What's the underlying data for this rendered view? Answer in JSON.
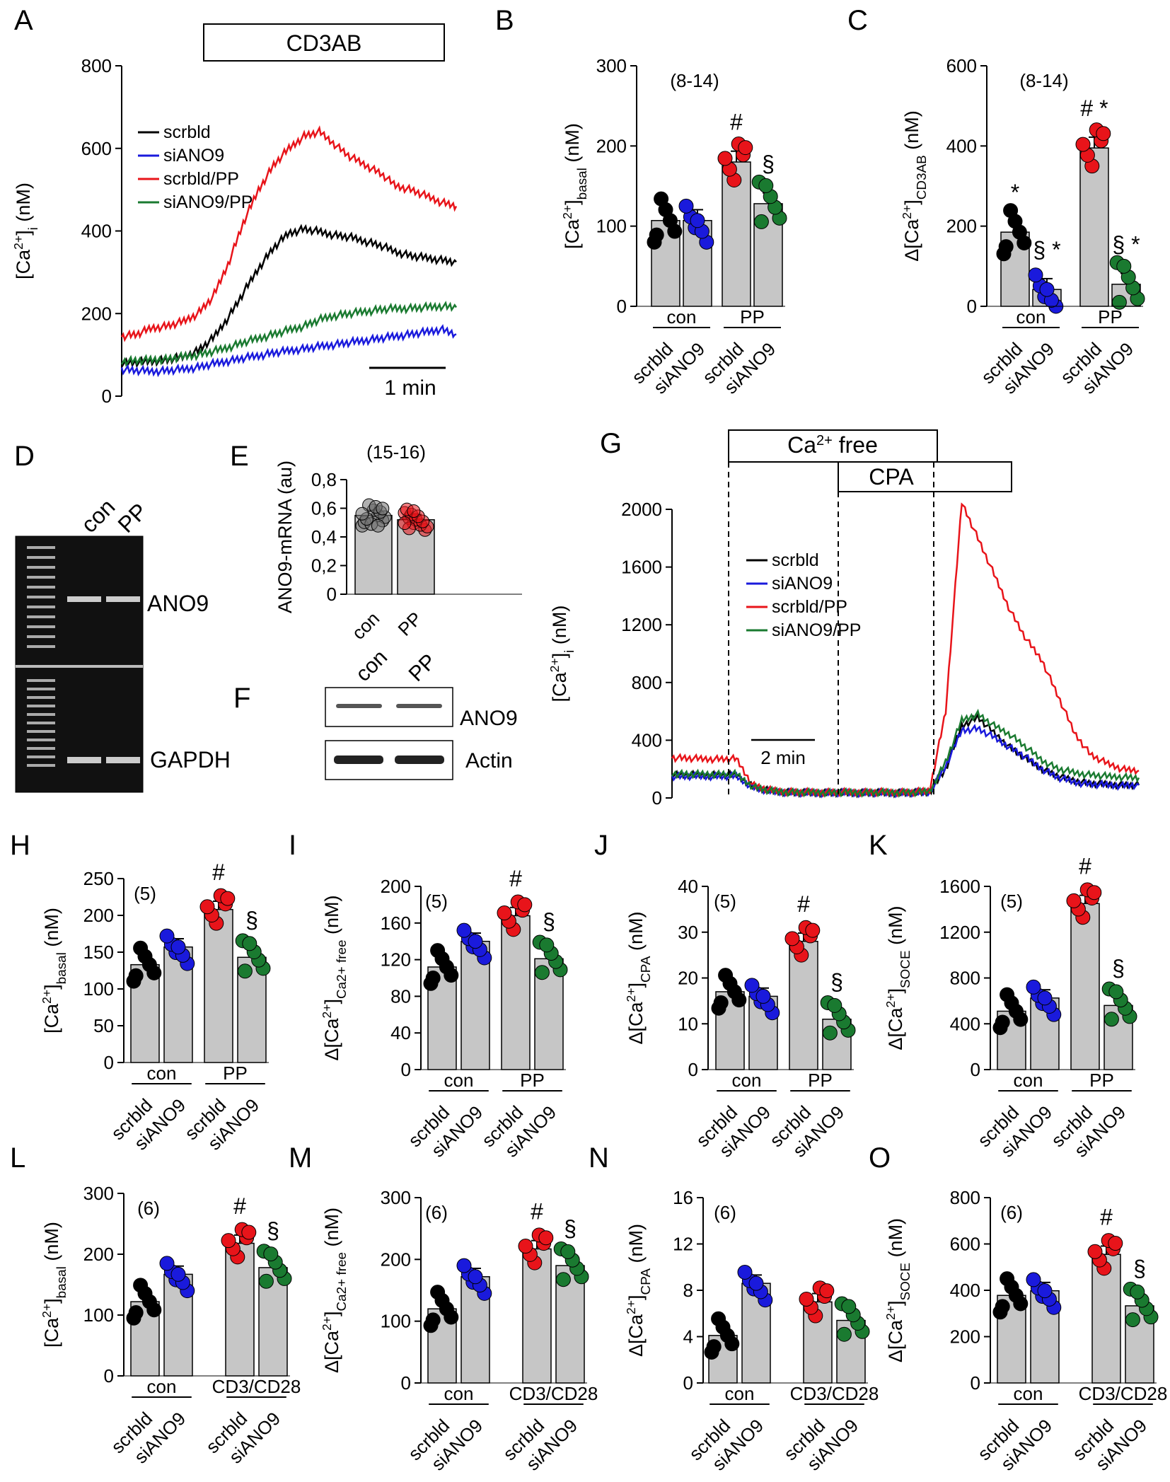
{
  "colors": {
    "scrbld": "#000000",
    "siANO9": "#1a1adc",
    "scrbld_pp": "#e8141a",
    "siANO9_pp": "#1a7a30",
    "bar": "#c6c6c6"
  },
  "chart_data": [
    {
      "id": "A",
      "type": "line",
      "panel_label": "A",
      "stimulus": "CD3AB",
      "ylabel": "[Ca2+]i (nM)",
      "ylim": [
        0,
        800
      ],
      "yticks": [
        0,
        200,
        400,
        600,
        800
      ],
      "scale_bar": "1 min",
      "legend": [
        "scrbld",
        "siANO9",
        "scrbld/PP",
        "siANO9/PP"
      ],
      "series": [
        {
          "name": "scrbld",
          "values": [
            80,
            82,
            85,
            88,
            95,
            110,
            140,
            190,
            250,
            310,
            360,
            395,
            405,
            398,
            390,
            385,
            375,
            365,
            350,
            340,
            335,
            330,
            325
          ]
        },
        {
          "name": "siANO9",
          "values": [
            65,
            62,
            60,
            62,
            65,
            70,
            78,
            85,
            92,
            98,
            105,
            110,
            115,
            120,
            125,
            130,
            135,
            140,
            145,
            150,
            155,
            162,
            150
          ]
        },
        {
          "name": "scrbld/PP",
          "values": [
            145,
            150,
            165,
            170,
            180,
            200,
            240,
            320,
            420,
            500,
            560,
            600,
            630,
            640,
            610,
            580,
            560,
            540,
            510,
            500,
            485,
            470,
            460
          ]
        },
        {
          "name": "siANO9/PP",
          "values": [
            85,
            86,
            88,
            90,
            95,
            100,
            108,
            118,
            130,
            140,
            150,
            160,
            170,
            185,
            195,
            200,
            205,
            210,
            212,
            213,
            215,
            218,
            215
          ]
        }
      ]
    },
    {
      "id": "B",
      "type": "bar",
      "panel_label": "B",
      "ylabel": "[Ca2+]basal (nM)",
      "ylim": [
        0,
        300
      ],
      "yticks": [
        0,
        100,
        200,
        300
      ],
      "n_label": "(8-14)",
      "groups": [
        "con",
        "PP"
      ],
      "categories": [
        "scrbld",
        "siANO9",
        "scrbld",
        "siANO9"
      ],
      "values": [
        107,
        107,
        180,
        128
      ],
      "marks": [
        "",
        "",
        "#",
        "§"
      ]
    },
    {
      "id": "C",
      "type": "bar",
      "panel_label": "C",
      "ylabel": "Δ[Ca2+]CD3AB (nM)",
      "ylim": [
        0,
        600
      ],
      "yticks": [
        0,
        200,
        400,
        600
      ],
      "n_label": "(8-14)",
      "groups": [
        "con",
        "PP"
      ],
      "categories": [
        "scrbld",
        "siANO9",
        "scrbld",
        "siANO9"
      ],
      "values": [
        185,
        42,
        395,
        55
      ],
      "marks": [
        "*",
        "§ *",
        "# *",
        "§ *"
      ]
    },
    {
      "id": "D",
      "type": "gel",
      "panel_label": "D",
      "lanes": [
        "con",
        "PP"
      ],
      "bands": [
        "ANO9",
        "GAPDH"
      ]
    },
    {
      "id": "E",
      "type": "bar",
      "panel_label": "E",
      "ylabel": "ANO9-mRNA (au)",
      "ylim": [
        0,
        0.8
      ],
      "yticks": [
        "0",
        "0,2",
        "0,4",
        "0,6",
        "0,8"
      ],
      "n_label": "(15-16)",
      "categories": [
        "con",
        "PP"
      ],
      "values": [
        0.55,
        0.52
      ],
      "marks": [
        "",
        ""
      ]
    },
    {
      "id": "F",
      "type": "blot",
      "panel_label": "F",
      "lanes": [
        "con",
        "PP"
      ],
      "bands": [
        "ANO9",
        "Actin"
      ]
    },
    {
      "id": "G",
      "type": "line",
      "panel_label": "G",
      "ylabel": "[Ca2+]i (nM)",
      "ylim": [
        0,
        2000
      ],
      "yticks": [
        0,
        400,
        800,
        1200,
        1600,
        2000
      ],
      "ca_free_label": "Ca2+ free",
      "cpa_label": "CPA",
      "scale_bar": "2 min",
      "legend": [
        "scrbld",
        "siANO9",
        "scrbld/PP",
        "siANO9/PP"
      ],
      "series": [
        {
          "name": "scrbld",
          "values": [
            160,
            160,
            160,
            160,
            160,
            80,
            50,
            40,
            35,
            35,
            35,
            35,
            35,
            35,
            35,
            35,
            40,
            200,
            500,
            560,
            450,
            350,
            270,
            200,
            150,
            120,
            100,
            95,
            90,
            88
          ]
        },
        {
          "name": "siANO9",
          "values": [
            150,
            150,
            150,
            150,
            150,
            75,
            45,
            40,
            35,
            35,
            35,
            35,
            35,
            35,
            35,
            35,
            40,
            220,
            470,
            480,
            420,
            350,
            280,
            200,
            140,
            110,
            95,
            90,
            85,
            90
          ]
        },
        {
          "name": "scrbld/PP",
          "values": [
            280,
            275,
            270,
            270,
            270,
            90,
            55,
            45,
            40,
            40,
            40,
            40,
            40,
            40,
            40,
            40,
            50,
            600,
            2050,
            1800,
            1550,
            1300,
            1100,
            950,
            700,
            450,
            300,
            240,
            200,
            190
          ]
        },
        {
          "name": "siANO9/PP",
          "values": [
            170,
            165,
            165,
            165,
            165,
            80,
            50,
            42,
            38,
            38,
            38,
            38,
            38,
            38,
            38,
            38,
            45,
            250,
            540,
            580,
            500,
            440,
            350,
            260,
            200,
            175,
            160,
            150,
            145,
            140
          ]
        }
      ]
    },
    {
      "id": "H",
      "type": "bar",
      "panel_label": "H",
      "ylabel": "[Ca2+]basal (nM)",
      "ylim": [
        0,
        250
      ],
      "yticks": [
        0,
        50,
        100,
        150,
        200,
        250
      ],
      "n_label": "(5)",
      "groups": [
        "con",
        "PP"
      ],
      "categories": [
        "scrbld",
        "siANO9",
        "scrbld",
        "siANO9"
      ],
      "values": [
        133,
        157,
        208,
        143
      ],
      "marks": [
        "",
        "",
        "#",
        "§"
      ]
    },
    {
      "id": "I",
      "type": "bar",
      "panel_label": "I",
      "ylabel": "Δ[Ca2+]Ca2+ free (nM)",
      "ylim": [
        0,
        200
      ],
      "yticks": [
        0,
        40,
        80,
        120,
        160,
        200
      ],
      "n_label": "(5)",
      "groups": [
        "con",
        "PP"
      ],
      "categories": [
        "scrbld",
        "siANO9",
        "scrbld",
        "siANO9"
      ],
      "values": [
        112,
        140,
        168,
        121
      ],
      "marks": [
        "",
        "",
        "#",
        "§"
      ]
    },
    {
      "id": "J",
      "type": "bar",
      "panel_label": "J",
      "ylabel": "Δ[Ca2+]CPA (nM)",
      "ylim": [
        0,
        40
      ],
      "yticks": [
        0,
        10,
        20,
        30,
        40
      ],
      "n_label": "(5)",
      "groups": [
        "con",
        "PP"
      ],
      "categories": [
        "scrbld",
        "siANO9",
        "scrbld",
        "siANO9"
      ],
      "values": [
        17,
        16,
        28,
        11
      ],
      "marks": [
        "",
        "",
        "#",
        "§"
      ]
    },
    {
      "id": "K",
      "type": "bar",
      "panel_label": "K",
      "ylabel": "Δ[Ca2+]SOCE (nM)",
      "ylim": [
        0,
        1600
      ],
      "yticks": [
        0,
        400,
        800,
        1200,
        1600
      ],
      "n_label": "(5)",
      "groups": [
        "con",
        "PP"
      ],
      "categories": [
        "scrbld",
        "siANO9",
        "scrbld",
        "siANO9"
      ],
      "values": [
        510,
        625,
        1450,
        560
      ],
      "marks": [
        "",
        "",
        "#",
        "§"
      ]
    },
    {
      "id": "L",
      "type": "bar",
      "panel_label": "L",
      "ylabel": "[Ca2+]basal (nM)",
      "ylim": [
        0,
        300
      ],
      "yticks": [
        0,
        100,
        200,
        300
      ],
      "n_label": "(6)",
      "groups": [
        "con",
        "CD3/CD28"
      ],
      "categories": [
        "scrbld",
        "siANO9",
        "scrbld",
        "siANO9"
      ],
      "values": [
        122,
        167,
        218,
        178
      ],
      "marks": [
        "",
        "",
        "#",
        "§"
      ]
    },
    {
      "id": "M",
      "type": "bar",
      "panel_label": "M",
      "ylabel": "Δ[Ca2+]Ca2+ free (nM)",
      "ylim": [
        0,
        300
      ],
      "yticks": [
        0,
        100,
        200,
        300
      ],
      "n_label": "(6)",
      "groups": [
        "con",
        "CD3/CD28"
      ],
      "categories": [
        "scrbld",
        "siANO9",
        "scrbld",
        "siANO9"
      ],
      "values": [
        120,
        172,
        217,
        190
      ],
      "marks": [
        "",
        "",
        "#",
        "§"
      ]
    },
    {
      "id": "N",
      "type": "bar",
      "panel_label": "N",
      "ylabel": "Δ[Ca2+]CPA (nM)",
      "ylim": [
        0,
        16
      ],
      "yticks": [
        0,
        4,
        8,
        12,
        16
      ],
      "n_label": "(6)",
      "groups": [
        "con",
        "CD3/CD28"
      ],
      "categories": [
        "scrbld",
        "siANO9",
        "scrbld",
        "siANO9"
      ],
      "values": [
        4.1,
        8.6,
        7.0,
        5.4
      ],
      "marks": [
        "",
        "",
        "",
        ""
      ]
    },
    {
      "id": "O",
      "type": "bar",
      "panel_label": "O",
      "ylabel": "Δ[Ca2+]SOCE (nM)",
      "ylim": [
        0,
        800
      ],
      "yticks": [
        0,
        200,
        400,
        600,
        800
      ],
      "n_label": "(6)",
      "groups": [
        "con",
        "CD3/CD28"
      ],
      "categories": [
        "scrbld",
        "siANO9",
        "scrbld",
        "siANO9"
      ],
      "values": [
        378,
        398,
        555,
        333
      ],
      "marks": [
        "",
        "",
        "#",
        "§"
      ]
    }
  ]
}
